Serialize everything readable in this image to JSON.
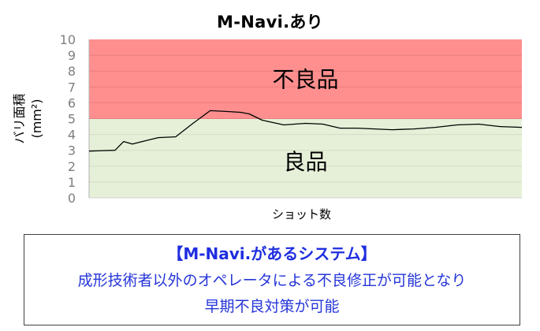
{
  "chart_data": {
    "type": "line",
    "title": "M-Navi.あり",
    "ylabel": "バリ面積\n(mm²)",
    "xlabel": "ショット数",
    "ylim": [
      0,
      10
    ],
    "yticks": [
      "0",
      "1",
      "2",
      "3",
      "4",
      "5",
      "6",
      "7",
      "8",
      "9",
      "10"
    ],
    "grid": true,
    "regions": [
      {
        "label": "不良品",
        "from": 5,
        "to": 10,
        "color": "#ff8f8f"
      },
      {
        "label": "良品",
        "from": 0,
        "to": 5,
        "color": "#e6f0d8"
      }
    ],
    "series": [
      {
        "color": "#000000",
        "x": [
          0,
          0.06,
          0.08,
          0.1,
          0.13,
          0.16,
          0.2,
          0.24,
          0.28,
          0.32,
          0.35,
          0.37,
          0.4,
          0.45,
          0.5,
          0.54,
          0.58,
          0.62,
          0.66,
          0.7,
          0.75,
          0.8,
          0.85,
          0.9,
          0.95,
          1.0
        ],
        "y": [
          2.95,
          3.0,
          3.55,
          3.4,
          3.6,
          3.8,
          3.85,
          4.7,
          5.5,
          5.45,
          5.4,
          5.3,
          4.9,
          4.6,
          4.7,
          4.65,
          4.4,
          4.4,
          4.35,
          4.3,
          4.35,
          4.45,
          4.6,
          4.65,
          4.5,
          4.45
        ]
      }
    ]
  },
  "caption": {
    "heading": "【M-Navi.があるシステム】",
    "line1": "成形技術者以外のオペレータによる不良修正が可能となり",
    "line2": "早期不良対策が可能"
  }
}
